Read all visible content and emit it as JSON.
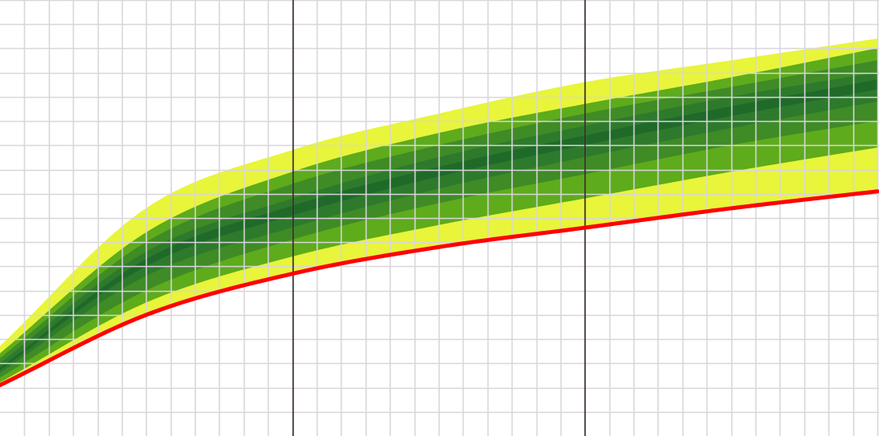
{
  "chart_data": {
    "type": "area",
    "x": [
      0,
      0.5,
      1,
      1.5,
      2,
      2.5,
      3
    ],
    "xlim": [
      0,
      3
    ],
    "ylim": [
      0,
      18
    ],
    "x_minor_step": 0.083333,
    "y_minor_step": 1,
    "x_major_gridlines": [
      1,
      2
    ],
    "grid": true,
    "colors": {
      "band_outer": "#e8f53a",
      "band_2": "#5eab1c",
      "band_3": "#3f8b26",
      "band_4": "#2e7a2c",
      "band_5": "#1f6a29",
      "band_center": "#0a5a14",
      "red_line": "#ff0000",
      "minor_grid": "#d9d6dc",
      "major_grid": "#2b1f1a"
    },
    "band_colors": [
      "#e8f53a",
      "#5eab1c",
      "#3f8b26",
      "#2e7a2c",
      "#1f6a29",
      "#0a5a14"
    ],
    "percentile_curves": [
      [
        3.7,
        9.4,
        11.8,
        13.3,
        14.6,
        15.5,
        16.4
      ],
      [
        3.4,
        8.4,
        10.9,
        12.5,
        13.7,
        14.8,
        16.0
      ],
      [
        3.2,
        8.0,
        10.4,
        12.0,
        13.3,
        14.4,
        15.5
      ],
      [
        3.0,
        7.6,
        9.8,
        11.5,
        12.8,
        14.0,
        15.0
      ],
      [
        2.8,
        7.3,
        9.5,
        11.1,
        12.4,
        13.6,
        14.7
      ],
      [
        2.7,
        7.0,
        9.1,
        10.7,
        12.0,
        13.2,
        14.3
      ],
      [
        2.6,
        6.6,
        8.6,
        10.2,
        11.5,
        12.7,
        13.8
      ],
      [
        2.4,
        6.0,
        8.1,
        9.6,
        10.8,
        12.0,
        13.0
      ],
      [
        2.2,
        5.5,
        7.4,
        8.7,
        9.8,
        10.9,
        11.9
      ],
      [
        2.1,
        5.0,
        6.7,
        7.8,
        8.6,
        9.4,
        10.1
      ]
    ],
    "red_line": [
      2.1,
      5.0,
      6.7,
      7.8,
      8.6,
      9.4,
      10.1
    ]
  }
}
